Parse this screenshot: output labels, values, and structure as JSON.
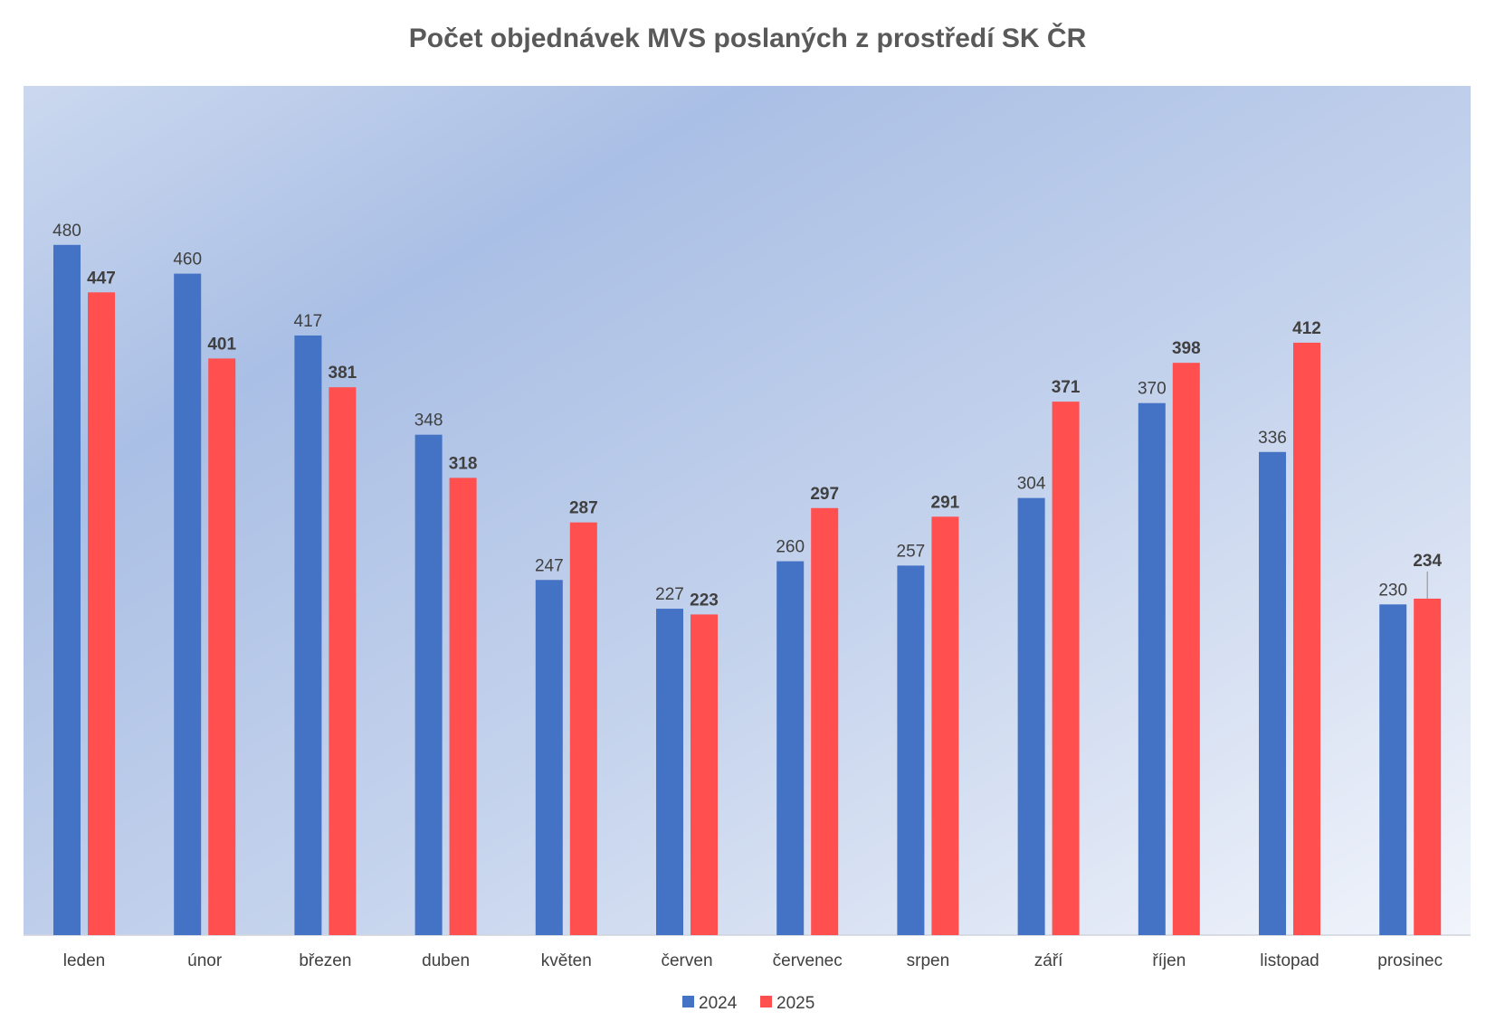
{
  "chart_data": {
    "type": "bar",
    "title": "Počet objednávek MVS poslaných z prostředí SK ČR",
    "categories": [
      "leden",
      "únor",
      "březen",
      "duben",
      "květen",
      "červen",
      "červenec",
      "srpen",
      "září",
      "říjen",
      "listopad",
      "prosinec"
    ],
    "series": [
      {
        "name": "2024",
        "color": "#4472C4",
        "values": [
          480,
          460,
          417,
          348,
          247,
          227,
          260,
          257,
          304,
          370,
          336,
          230
        ],
        "label_weight": "normal"
      },
      {
        "name": "2025",
        "color": "#FF4F4F",
        "values": [
          447,
          401,
          381,
          318,
          287,
          223,
          297,
          291,
          371,
          398,
          412,
          234
        ],
        "label_weight": "bold"
      }
    ],
    "xlabel": "",
    "ylabel": "",
    "ylim": [
      0,
      590
    ],
    "y_axis_visible": false,
    "grid": false,
    "data_labels": true,
    "legend_position": "bottom",
    "background": "gradient light blue"
  }
}
